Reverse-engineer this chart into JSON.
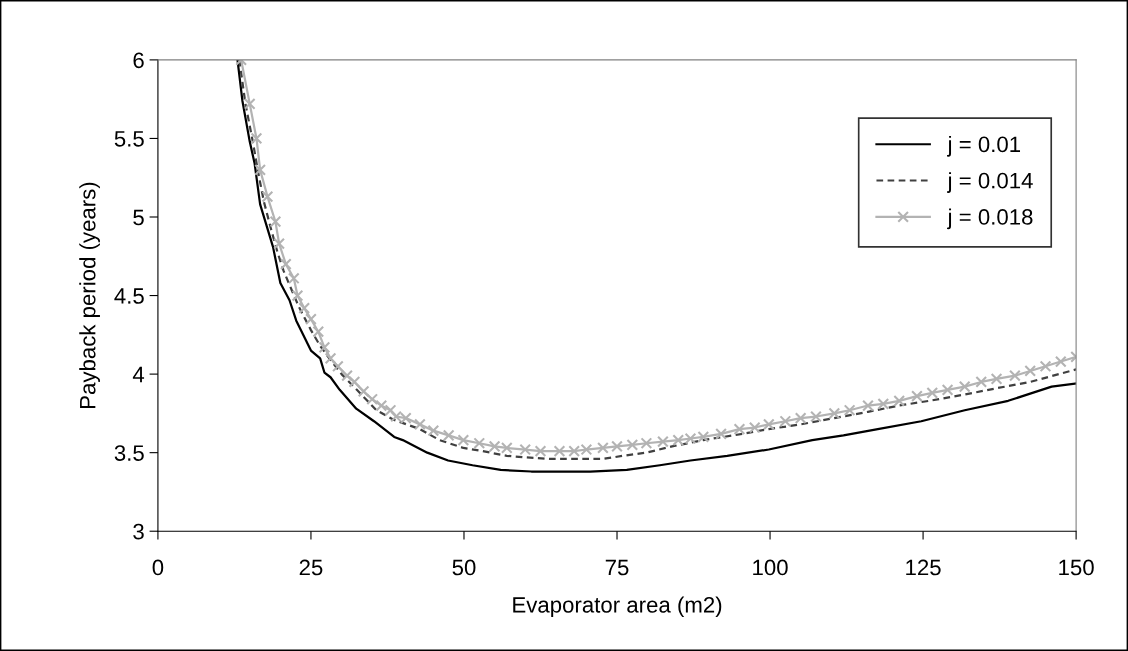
{
  "chart_data": {
    "type": "line",
    "xlabel": "Evaporator area (m2)",
    "ylabel": "Payback period (years)",
    "xlim": [
      0,
      150
    ],
    "ylim": [
      3,
      6
    ],
    "xticks": [
      0,
      25,
      50,
      75,
      100,
      125,
      150
    ],
    "yticks": [
      3,
      3.5,
      4,
      4.5,
      5,
      5.5,
      6
    ],
    "grid": false,
    "legend": "top right",
    "series": [
      {
        "name": "j = 0.01",
        "color": "#000000",
        "line_style": "solid",
        "marker": "none",
        "x": [
          13,
          13.8,
          15,
          15.8,
          16.7,
          18.8,
          20,
          21.5,
          22.6,
          25,
          26.5,
          27.2,
          28.2,
          29.7,
          32.4,
          35.3,
          38.6,
          40,
          44,
          47.4,
          51.4,
          56,
          61,
          66,
          70.6,
          76.6,
          82,
          87,
          93,
          99.8,
          106.9,
          112,
          117.6,
          124.7,
          131.8,
          138.9,
          146,
          150
        ],
        "values": [
          6.0,
          5.74,
          5.48,
          5.34,
          5.08,
          4.81,
          4.58,
          4.47,
          4.34,
          4.15,
          4.1,
          4.01,
          3.98,
          3.9,
          3.78,
          3.7,
          3.6,
          3.58,
          3.5,
          3.45,
          3.42,
          3.39,
          3.38,
          3.38,
          3.38,
          3.39,
          3.42,
          3.45,
          3.48,
          3.52,
          3.58,
          3.61,
          3.65,
          3.7,
          3.77,
          3.83,
          3.92,
          3.94
        ]
      },
      {
        "name": "j = 0.014",
        "color": "#404040",
        "line_style": "dashed",
        "marker": "none",
        "x": [
          13.3,
          14.3,
          15.5,
          16.4,
          17.3,
          18.5,
          19.5,
          20.5,
          21.8,
          23,
          25,
          26.5,
          28,
          30,
          32.5,
          35.7,
          38.5,
          42.8,
          46,
          49.9,
          53,
          57,
          60,
          64.2,
          68,
          72.7,
          76,
          79.8,
          84,
          89.1,
          94,
          99.8,
          105,
          110.5,
          116,
          121.1,
          126,
          131.8,
          137,
          142.5,
          150
        ],
        "values": [
          6.0,
          5.72,
          5.48,
          5.28,
          5.1,
          4.92,
          4.78,
          4.66,
          4.54,
          4.43,
          4.28,
          4.18,
          4.1,
          4.0,
          3.9,
          3.77,
          3.71,
          3.65,
          3.58,
          3.53,
          3.51,
          3.48,
          3.47,
          3.46,
          3.46,
          3.46,
          3.48,
          3.5,
          3.54,
          3.58,
          3.61,
          3.65,
          3.68,
          3.72,
          3.76,
          3.8,
          3.83,
          3.87,
          3.91,
          3.95,
          4.03
        ]
      },
      {
        "name": "j = 0.018",
        "color": "#b3b3b3",
        "line_style": "solid",
        "marker": "cross",
        "x": [
          13.6,
          15,
          16.1,
          16.7,
          17.9,
          19.2,
          19.8,
          20.9,
          22.2,
          22.8,
          23.9,
          25,
          26.2,
          27.2,
          28.2,
          29.4,
          30.9,
          32.1,
          33.6,
          35,
          36.5,
          38,
          38.9,
          40.5,
          42.8,
          45,
          47.5,
          49.9,
          52.5,
          55,
          57,
          60,
          62.5,
          65.6,
          68,
          70,
          72.7,
          75,
          77.5,
          79.8,
          82.5,
          85,
          87,
          89.1,
          92,
          95,
          97.5,
          99.8,
          102.5,
          105,
          107.5,
          110.5,
          113,
          116,
          118.5,
          121.1,
          124,
          126.5,
          129,
          131.8,
          134.5,
          137,
          140,
          142.5,
          145,
          147.5,
          150
        ],
        "values": [
          6.0,
          5.72,
          5.5,
          5.3,
          5.13,
          4.97,
          4.83,
          4.7,
          4.61,
          4.5,
          4.42,
          4.35,
          4.27,
          4.17,
          4.1,
          4.05,
          3.99,
          3.95,
          3.89,
          3.84,
          3.8,
          3.77,
          3.73,
          3.72,
          3.68,
          3.64,
          3.61,
          3.58,
          3.56,
          3.54,
          3.53,
          3.52,
          3.51,
          3.51,
          3.51,
          3.52,
          3.53,
          3.54,
          3.55,
          3.56,
          3.57,
          3.58,
          3.59,
          3.6,
          3.62,
          3.65,
          3.66,
          3.68,
          3.7,
          3.72,
          3.73,
          3.75,
          3.77,
          3.8,
          3.81,
          3.83,
          3.86,
          3.88,
          3.9,
          3.92,
          3.95,
          3.97,
          3.99,
          4.02,
          4.05,
          4.08,
          4.11
        ]
      }
    ]
  }
}
